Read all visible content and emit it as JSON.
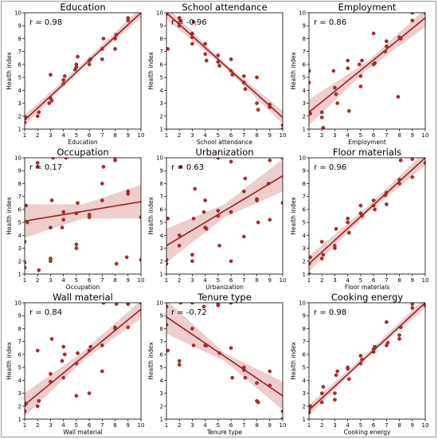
{
  "chart_data": [
    {
      "type": "scatter",
      "title": "Education",
      "xlabel": "Education",
      "ylabel": "Health index",
      "annotation": "r = 0.98",
      "xlim": [
        1,
        10
      ],
      "ylim": [
        1,
        10
      ],
      "xticks": [
        1,
        2,
        3,
        4,
        5,
        6,
        7,
        8,
        9,
        10
      ],
      "yticks": [
        1,
        2,
        3,
        4,
        5,
        6,
        7,
        8,
        9,
        10
      ],
      "fit": {
        "x": [
          1,
          10
        ],
        "y": [
          1.7,
          10.0
        ]
      },
      "band": {
        "x": [
          1,
          5.5,
          10
        ],
        "lower": [
          1.3,
          5.8,
          9.6
        ],
        "upper": [
          2.1,
          6.1,
          10.4
        ]
      },
      "points": {
        "x": [
          1.0,
          1.1,
          2.0,
          2.1,
          2.9,
          3.0,
          3.1,
          3.0,
          4.0,
          4.0,
          4.1,
          4.9,
          5.0,
          5.1,
          5.0,
          6.0,
          6.1,
          6.0,
          7.0,
          7.0,
          7.1,
          8.0,
          8.0,
          8.1,
          9.0,
          9.0,
          10.0
        ],
        "y": [
          1.5,
          1.9,
          2.0,
          2.3,
          3.0,
          3.4,
          3.2,
          5.2,
          4.5,
          4.8,
          5.1,
          5.6,
          6.0,
          6.6,
          5.8,
          6.0,
          6.4,
          6.3,
          6.4,
          7.2,
          8.0,
          7.2,
          8.0,
          8.3,
          9.4,
          9.6,
          10.0
        ]
      }
    },
    {
      "type": "scatter",
      "title": "School attendance",
      "xlabel": "School attendance",
      "ylabel": "Health index",
      "annotation": "r = -0.96",
      "xlim": [
        1,
        10
      ],
      "ylim": [
        1,
        10
      ],
      "xticks": [
        1,
        2,
        3,
        4,
        5,
        6,
        7,
        8,
        9,
        10
      ],
      "yticks": [
        1,
        2,
        3,
        4,
        5,
        6,
        7,
        8,
        9,
        10
      ],
      "fit": {
        "x": [
          1,
          10
        ],
        "y": [
          10.0,
          1.9
        ]
      },
      "band": {
        "x": [
          1,
          5.5,
          10
        ],
        "lower": [
          9.5,
          5.8,
          1.4
        ],
        "upper": [
          10.5,
          6.1,
          2.4
        ]
      },
      "points": {
        "x": [
          1.0,
          1.1,
          2.0,
          2.0,
          2.1,
          3.0,
          3.0,
          3.1,
          3.0,
          4.0,
          4.0,
          4.1,
          5.0,
          5.0,
          5.1,
          6.0,
          6.0,
          6.1,
          7.0,
          7.0,
          7.1,
          8.0,
          8.0,
          8.1,
          9.0,
          9.0,
          10.0,
          10.0
        ],
        "y": [
          9.9,
          7.2,
          9.6,
          9.0,
          9.4,
          8.4,
          8.1,
          9.3,
          7.6,
          7.6,
          6.8,
          6.3,
          6.7,
          6.2,
          5.9,
          6.4,
          5.5,
          5.2,
          4.6,
          5.1,
          4.1,
          5.0,
          3.0,
          2.5,
          2.7,
          2.9,
          1.3,
          1.0
        ]
      }
    },
    {
      "type": "scatter",
      "title": "Employment",
      "xlabel": "Employment",
      "ylabel": "Health index",
      "annotation": "r = 0.86",
      "xlim": [
        1,
        10
      ],
      "ylim": [
        1,
        10
      ],
      "xticks": [
        1,
        2,
        3,
        4,
        5,
        6,
        7,
        8,
        9,
        10
      ],
      "yticks": [
        1,
        2,
        3,
        4,
        5,
        6,
        7,
        8,
        9,
        10
      ],
      "fit": {
        "x": [
          1,
          10
        ],
        "y": [
          2.3,
          9.6
        ]
      },
      "band": {
        "x": [
          1,
          5.5,
          10
        ],
        "lower": [
          1.3,
          5.6,
          8.9
        ],
        "upper": [
          3.3,
          6.2,
          10.3
        ]
      },
      "points": {
        "x": [
          1.0,
          1.0,
          1.1,
          2.0,
          2.0,
          2.1,
          2.9,
          3.0,
          3.1,
          3.2,
          4.0,
          4.0,
          4.1,
          4.9,
          5.0,
          5.0,
          5.1,
          6.0,
          6.0,
          6.1,
          6.9,
          7.0,
          7.0,
          7.9,
          8.0,
          8.1,
          9.0,
          9.0,
          10.0
        ],
        "y": [
          5.5,
          4.6,
          2.2,
          2.3,
          1.9,
          1.1,
          5.5,
          4.2,
          3.7,
          3.0,
          6.3,
          5.7,
          2.4,
          6.0,
          5.1,
          4.3,
          6.3,
          6.0,
          8.4,
          6.1,
          7.0,
          7.4,
          7.8,
          3.5,
          8.1,
          8.0,
          9.4,
          10.0,
          10.0
        ]
      }
    },
    {
      "type": "scatter",
      "title": "Occupation",
      "xlabel": "Occupation",
      "ylabel": "Health index",
      "annotation": "r = 0.17",
      "xlim": [
        1,
        10
      ],
      "ylim": [
        1,
        10
      ],
      "xticks": [
        1,
        2,
        3,
        4,
        5,
        6,
        7,
        8,
        9,
        10
      ],
      "yticks": [
        1,
        2,
        3,
        4,
        5,
        6,
        7,
        8,
        9,
        10
      ],
      "fit": {
        "x": [
          1,
          10
        ],
        "y": [
          5.1,
          6.6
        ]
      },
      "band": {
        "x": [
          1,
          5.5,
          10
        ],
        "lower": [
          3.8,
          5.3,
          5.3
        ],
        "upper": [
          6.4,
          6.4,
          7.9
        ]
      },
      "points": {
        "x": [
          1.0,
          1.0,
          1.0,
          1.1,
          1.2,
          2.0,
          2.0,
          2.1,
          3.0,
          3.0,
          3.0,
          3.1,
          3.2,
          3.9,
          4.0,
          4.0,
          4.2,
          5.0,
          5.0,
          5.0,
          5.1,
          6.0,
          6.0,
          7.0,
          7.1,
          7.0,
          8.0,
          8.0,
          8.1,
          8.9,
          9.0,
          9.0,
          10.0,
          10.0
        ],
        "y": [
          1.9,
          1.5,
          3.5,
          6.3,
          5.0,
          9.3,
          9.6,
          1.3,
          2.0,
          2.2,
          4.6,
          6.7,
          10.0,
          4.6,
          5.8,
          5.2,
          10.0,
          3.0,
          3.3,
          5.7,
          6.5,
          5.4,
          5.6,
          6.7,
          9.3,
          8.0,
          9.8,
          10.0,
          1.8,
          2.3,
          7.4,
          7.2,
          2.1,
          5.4
        ]
      }
    },
    {
      "type": "scatter",
      "title": "Urbanization",
      "xlabel": "Urbanization",
      "ylabel": "Health index",
      "annotation": "r = 0.63",
      "xlim": [
        1,
        10
      ],
      "ylim": [
        1,
        10
      ],
      "xticks": [
        1,
        2,
        3,
        4,
        5,
        6,
        7,
        8,
        9,
        10
      ],
      "yticks": [
        1,
        2,
        3,
        4,
        5,
        6,
        7,
        8,
        9,
        10
      ],
      "fit": {
        "x": [
          1,
          10
        ],
        "y": [
          3.2,
          8.6
        ]
      },
      "band": {
        "x": [
          1,
          5.5,
          10
        ],
        "lower": [
          1.9,
          5.4,
          7.4
        ],
        "upper": [
          4.5,
          6.4,
          9.9
        ]
      },
      "points": {
        "x": [
          1.0,
          1.0,
          1.1,
          2.0,
          2.0,
          2.1,
          3.0,
          3.0,
          3.1,
          3.2,
          3.9,
          4.0,
          4.0,
          4.1,
          5.0,
          5.0,
          5.0,
          5.1,
          6.0,
          6.0,
          6.0,
          7.0,
          7.0,
          7.1,
          8.0,
          8.0,
          8.1,
          8.9,
          9.0,
          9.0,
          10.0,
          10.0
        ],
        "y": [
          1.8,
          2.1,
          5.3,
          4.0,
          3.2,
          9.3,
          2.5,
          2.0,
          5.3,
          7.6,
          5.8,
          6.7,
          4.6,
          4.5,
          5.5,
          5.9,
          10.0,
          3.2,
          5.8,
          2.0,
          9.7,
          3.9,
          7.4,
          8.4,
          6.8,
          6.7,
          5.0,
          8.0,
          5.2,
          9.8,
          6.5,
          10.0
        ]
      }
    },
    {
      "type": "scatter",
      "title": "Floor materials",
      "xlabel": "Floor materials",
      "ylabel": "Health index",
      "annotation": "r = 0.96",
      "xlim": [
        1,
        10
      ],
      "ylim": [
        1,
        10
      ],
      "xticks": [
        1,
        2,
        3,
        4,
        5,
        6,
        7,
        8,
        9,
        10
      ],
      "yticks": [
        1,
        2,
        3,
        4,
        5,
        6,
        7,
        8,
        9,
        10
      ],
      "fit": {
        "x": [
          1,
          10
        ],
        "y": [
          1.8,
          10.0
        ]
      },
      "band": {
        "x": [
          1,
          5.5,
          10
        ],
        "lower": [
          1.2,
          5.7,
          9.4
        ],
        "upper": [
          2.4,
          6.2,
          10.5
        ]
      },
      "points": {
        "x": [
          1.0,
          1.0,
          1.1,
          2.0,
          2.0,
          2.1,
          3.0,
          3.0,
          3.1,
          4.0,
          4.0,
          4.1,
          5.0,
          5.0,
          5.1,
          6.0,
          6.0,
          6.1,
          6.9,
          7.0,
          7.0,
          8.0,
          8.0,
          8.1,
          9.0,
          9.0,
          10.0
        ],
        "y": [
          1.0,
          1.8,
          2.3,
          3.5,
          2.2,
          2.5,
          3.0,
          3.2,
          4.5,
          5.3,
          5.0,
          4.2,
          6.3,
          5.7,
          5.5,
          6.3,
          6.7,
          6.0,
          7.1,
          7.3,
          6.4,
          8.0,
          8.3,
          9.8,
          8.5,
          9.9,
          9.6
        ]
      }
    },
    {
      "type": "scatter",
      "title": "Wall material",
      "xlabel": "Wall material",
      "ylabel": "Health index",
      "annotation": "r = 0.84",
      "xlim": [
        1,
        10
      ],
      "ylim": [
        1,
        10
      ],
      "xticks": [
        1,
        2,
        3,
        4,
        5,
        6,
        7,
        8,
        9,
        10
      ],
      "yticks": [
        1,
        2,
        3,
        4,
        5,
        6,
        7,
        8,
        9,
        10
      ],
      "fit": {
        "x": [
          1,
          10
        ],
        "y": [
          2.1,
          9.5
        ]
      },
      "band": {
        "x": [
          1,
          5.5,
          10
        ],
        "lower": [
          1.2,
          5.5,
          8.8
        ],
        "upper": [
          3.0,
          6.2,
          10.2
        ]
      },
      "points": {
        "x": [
          1.0,
          1.0,
          1.1,
          2.0,
          2.0,
          2.1,
          3.0,
          3.0,
          3.1,
          3.9,
          4.0,
          4.0,
          4.1,
          5.0,
          5.0,
          5.1,
          6.0,
          6.0,
          6.1,
          7.0,
          7.0,
          7.1,
          8.0,
          8.0,
          8.1,
          9.0,
          9.0,
          10.0
        ],
        "y": [
          2.1,
          1.6,
          2.2,
          2.0,
          6.3,
          2.4,
          4.5,
          3.9,
          7.2,
          5.5,
          6.6,
          4.2,
          6.0,
          5.3,
          2.8,
          6.1,
          6.3,
          3.0,
          6.6,
          4.7,
          6.7,
          10.0,
          8.1,
          8.0,
          9.9,
          8.1,
          9.9,
          10.0
        ]
      }
    },
    {
      "type": "scatter",
      "title": "Tenure type",
      "xlabel": "Tenure type",
      "ylabel": "Health index",
      "annotation": "r = -0.72",
      "xlim": [
        1,
        10
      ],
      "ylim": [
        1,
        10
      ],
      "xticks": [
        1,
        2,
        3,
        4,
        5,
        6,
        7,
        8,
        9,
        10
      ],
      "yticks": [
        1,
        2,
        3,
        4,
        5,
        6,
        7,
        8,
        9,
        10
      ],
      "fit": {
        "x": [
          1,
          10
        ],
        "y": [
          8.9,
          2.8
        ]
      },
      "band": {
        "x": [
          1,
          5.5,
          10
        ],
        "lower": [
          7.6,
          5.5,
          1.7
        ],
        "upper": [
          10.2,
          6.1,
          3.9
        ]
      },
      "points": {
        "x": [
          1.0,
          1.0,
          1.1,
          2.0,
          2.0,
          2.1,
          3.0,
          3.0,
          3.1,
          3.9,
          4.0,
          4.1,
          5.0,
          5.0,
          5.1,
          6.0,
          6.0,
          6.1,
          7.0,
          7.0,
          7.1,
          8.0,
          8.0,
          8.1,
          9.0,
          9.0,
          10.0,
          10.0
        ],
        "y": [
          9.7,
          8.3,
          6.3,
          5.5,
          5.2,
          10.0,
          10.0,
          8.0,
          6.7,
          9.7,
          6.7,
          6.7,
          9.8,
          9.9,
          6.1,
          6.5,
          10.0,
          4.2,
          5.0,
          4.8,
          4.2,
          3.8,
          2.4,
          2.3,
          4.7,
          3.6,
          1.6,
          1.0
        ]
      }
    },
    {
      "type": "scatter",
      "title": "Cooking energy",
      "xlabel": "Cooking energy",
      "ylabel": "Health index",
      "annotation": "r = 0.98",
      "xlim": [
        1,
        10
      ],
      "ylim": [
        1,
        10
      ],
      "xticks": [
        1,
        2,
        3,
        4,
        5,
        6,
        7,
        8,
        9,
        10
      ],
      "yticks": [
        1,
        2,
        3,
        4,
        5,
        6,
        7,
        8,
        9,
        10
      ],
      "fit": {
        "x": [
          1,
          10
        ],
        "y": [
          1.7,
          10.0
        ]
      },
      "band": {
        "x": [
          1,
          5.5,
          10
        ],
        "lower": [
          1.3,
          5.8,
          9.6
        ],
        "upper": [
          2.1,
          6.1,
          10.4
        ]
      },
      "points": {
        "x": [
          1.0,
          1.0,
          1.1,
          2.0,
          2.0,
          2.1,
          3.0,
          3.0,
          3.1,
          3.2,
          4.0,
          4.0,
          4.1,
          5.0,
          5.0,
          5.1,
          6.0,
          6.0,
          6.1,
          7.0,
          7.0,
          7.1,
          8.0,
          8.0,
          8.1,
          9.0,
          9.0,
          10.0
        ],
        "y": [
          1.5,
          1.7,
          2.0,
          2.3,
          3.0,
          3.5,
          2.5,
          3.0,
          4.4,
          4.7,
          4.9,
          5.0,
          4.1,
          5.3,
          5.9,
          5.6,
          6.2,
          6.4,
          6.6,
          6.7,
          8.5,
          6.9,
          7.2,
          7.5,
          8.1,
          9.6,
          9.9,
          9.8
        ]
      }
    }
  ],
  "colors": {
    "point": "#b22a2a",
    "point_edge": "#8a1a1a",
    "line": "#a41c1c",
    "band": "#e8bcbc",
    "frame": "#000000",
    "text": "#000000"
  }
}
